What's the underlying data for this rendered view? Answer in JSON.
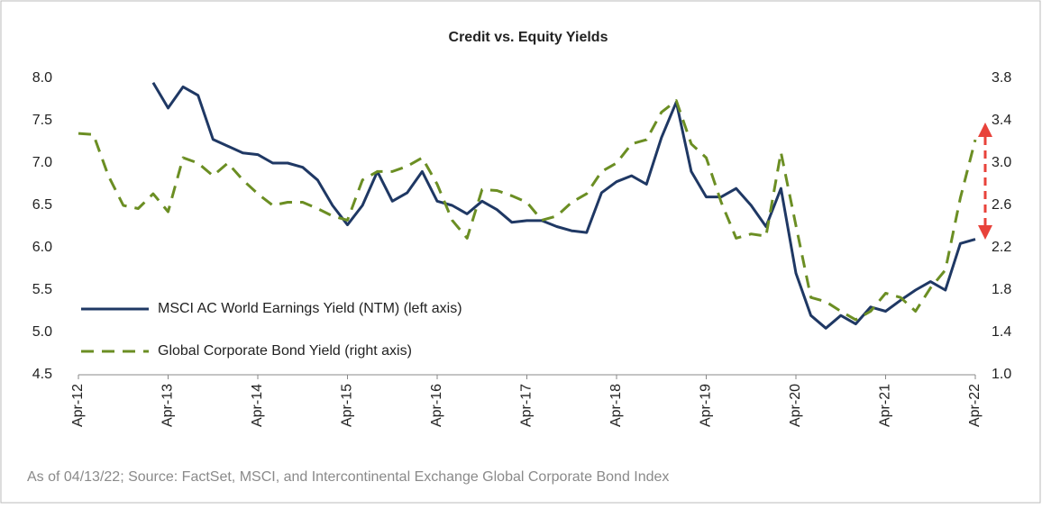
{
  "chart_data": {
    "type": "line",
    "title": "Credit vs. Equity Yields",
    "note": "As of 04/13/22; Source: FactSet, MSCI, and Intercontinental Exchange Global Corporate Bond Index",
    "categories": [
      "Apr-12",
      null,
      null,
      null,
      null,
      null,
      "Apr-13",
      null,
      null,
      null,
      null,
      null,
      "Apr-14",
      null,
      null,
      null,
      null,
      null,
      "Apr-15",
      null,
      null,
      null,
      null,
      null,
      "Apr-16",
      null,
      null,
      null,
      null,
      null,
      "Apr-17",
      null,
      null,
      null,
      null,
      null,
      "Apr-18",
      null,
      null,
      null,
      null,
      null,
      "Apr-19",
      null,
      null,
      null,
      null,
      null,
      "Apr-20",
      null,
      null,
      null,
      null,
      null,
      "Apr-21",
      null,
      null,
      null,
      null,
      null,
      "Apr-22"
    ],
    "series": [
      {
        "name": "MSCI AC World Earnings Yield (NTM) (left axis)",
        "color": "#1f3864",
        "dash": false,
        "axis": "y",
        "values": [
          null,
          null,
          null,
          null,
          null,
          7.95,
          7.65,
          7.9,
          7.8,
          7.28,
          7.2,
          7.12,
          7.1,
          7.0,
          7.0,
          6.95,
          6.8,
          6.5,
          6.27,
          6.5,
          6.9,
          6.55,
          6.65,
          6.9,
          6.55,
          6.5,
          6.4,
          6.55,
          6.45,
          6.3,
          6.32,
          6.32,
          6.25,
          6.2,
          6.18,
          6.65,
          6.78,
          6.85,
          6.75,
          7.3,
          7.72,
          6.9,
          6.6,
          6.6,
          6.7,
          6.5,
          6.25,
          6.7,
          5.7,
          5.2,
          5.05,
          5.2,
          5.1,
          5.3,
          5.25,
          5.38,
          5.5,
          5.6,
          5.5,
          6.05,
          6.1
        ]
      },
      {
        "name": "Global Corporate Bond Yield (right axis)",
        "color": "#6b8e23",
        "dash": true,
        "axis": "y2",
        "values": [
          3.28,
          3.27,
          2.88,
          2.6,
          2.57,
          2.71,
          2.54,
          3.05,
          3.0,
          2.88,
          3.0,
          2.84,
          2.71,
          2.6,
          2.63,
          2.63,
          2.57,
          2.5,
          2.46,
          2.84,
          2.92,
          2.92,
          2.97,
          3.05,
          2.8,
          2.46,
          2.29,
          2.75,
          2.74,
          2.69,
          2.63,
          2.46,
          2.5,
          2.63,
          2.71,
          2.92,
          3.0,
          3.18,
          3.22,
          3.48,
          3.59,
          3.18,
          3.05,
          2.63,
          2.29,
          2.33,
          2.31,
          3.1,
          2.41,
          1.73,
          1.69,
          1.6,
          1.52,
          1.6,
          1.77,
          1.73,
          1.6,
          1.82,
          1.99,
          2.67,
          3.22
        ]
      }
    ],
    "ylim": [
      4.5,
      8.0
    ],
    "yticks": [
      {
        "value": 4.5,
        "label": "4.5"
      },
      {
        "value": 5,
        "label": "5.0"
      },
      {
        "value": 5.5,
        "label": "5.5"
      },
      {
        "value": 6,
        "label": "6.0"
      },
      {
        "value": 6.5,
        "label": "6.5"
      },
      {
        "value": 7,
        "label": "7.0"
      },
      {
        "value": 7.5,
        "label": "7.5"
      },
      {
        "value": 8,
        "label": "8.0"
      }
    ],
    "y2lim": [
      1.0,
      3.8
    ],
    "y2ticks": [
      {
        "value": 1,
        "label": "1.0"
      },
      1.4,
      1.8,
      2.2,
      2.6,
      {
        "value": 3,
        "label": "3.0"
      },
      3.4,
      3.8
    ],
    "legend": "lower left",
    "grid": false
  }
}
